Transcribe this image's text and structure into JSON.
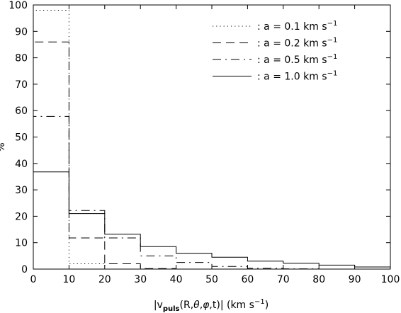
{
  "chart_data": {
    "type": "histogram",
    "title": "",
    "xlabel_parts": {
      "pre": "|v",
      "sub": "puls",
      "mid": "(R,",
      "theta": "θ",
      "comma1": ",",
      "phi": "φ",
      "post": ",t)|  (km s",
      "sup": "−1",
      "close": ")"
    },
    "ylabel": "%",
    "xlim": [
      0,
      100
    ],
    "ylim": [
      0,
      100
    ],
    "xticks": [
      0,
      10,
      20,
      30,
      40,
      50,
      60,
      70,
      80,
      90,
      100
    ],
    "yticks": [
      0,
      10,
      20,
      30,
      40,
      50,
      60,
      70,
      80,
      90,
      100
    ],
    "bin_edges": [
      0,
      10,
      20,
      30,
      40,
      50,
      60,
      70,
      80,
      90,
      100
    ],
    "legend_position": "top-right",
    "series": [
      {
        "name": ": a = 0.1 km s",
        "name_sup": "−1",
        "style": "dotted",
        "values": [
          98,
          2,
          0,
          0,
          0,
          0,
          0,
          0,
          0,
          0
        ]
      },
      {
        "name": ": a = 0.2 km s",
        "name_sup": "−1",
        "style": "dashed",
        "values": [
          86,
          11.8,
          2,
          0.2,
          0,
          0,
          0,
          0,
          0,
          0
        ]
      },
      {
        "name": ": a = 0.5 km s",
        "name_sup": "−1",
        "style": "dashdot",
        "values": [
          57.8,
          22.2,
          11.8,
          5,
          2.5,
          1,
          0.3,
          0.1,
          0,
          0
        ]
      },
      {
        "name": ": a = 1.0 km s",
        "name_sup": "−1",
        "style": "solid",
        "values": [
          36.8,
          21,
          13.2,
          8.5,
          6,
          4.5,
          3,
          2.2,
          1.5,
          0.8
        ]
      }
    ]
  }
}
